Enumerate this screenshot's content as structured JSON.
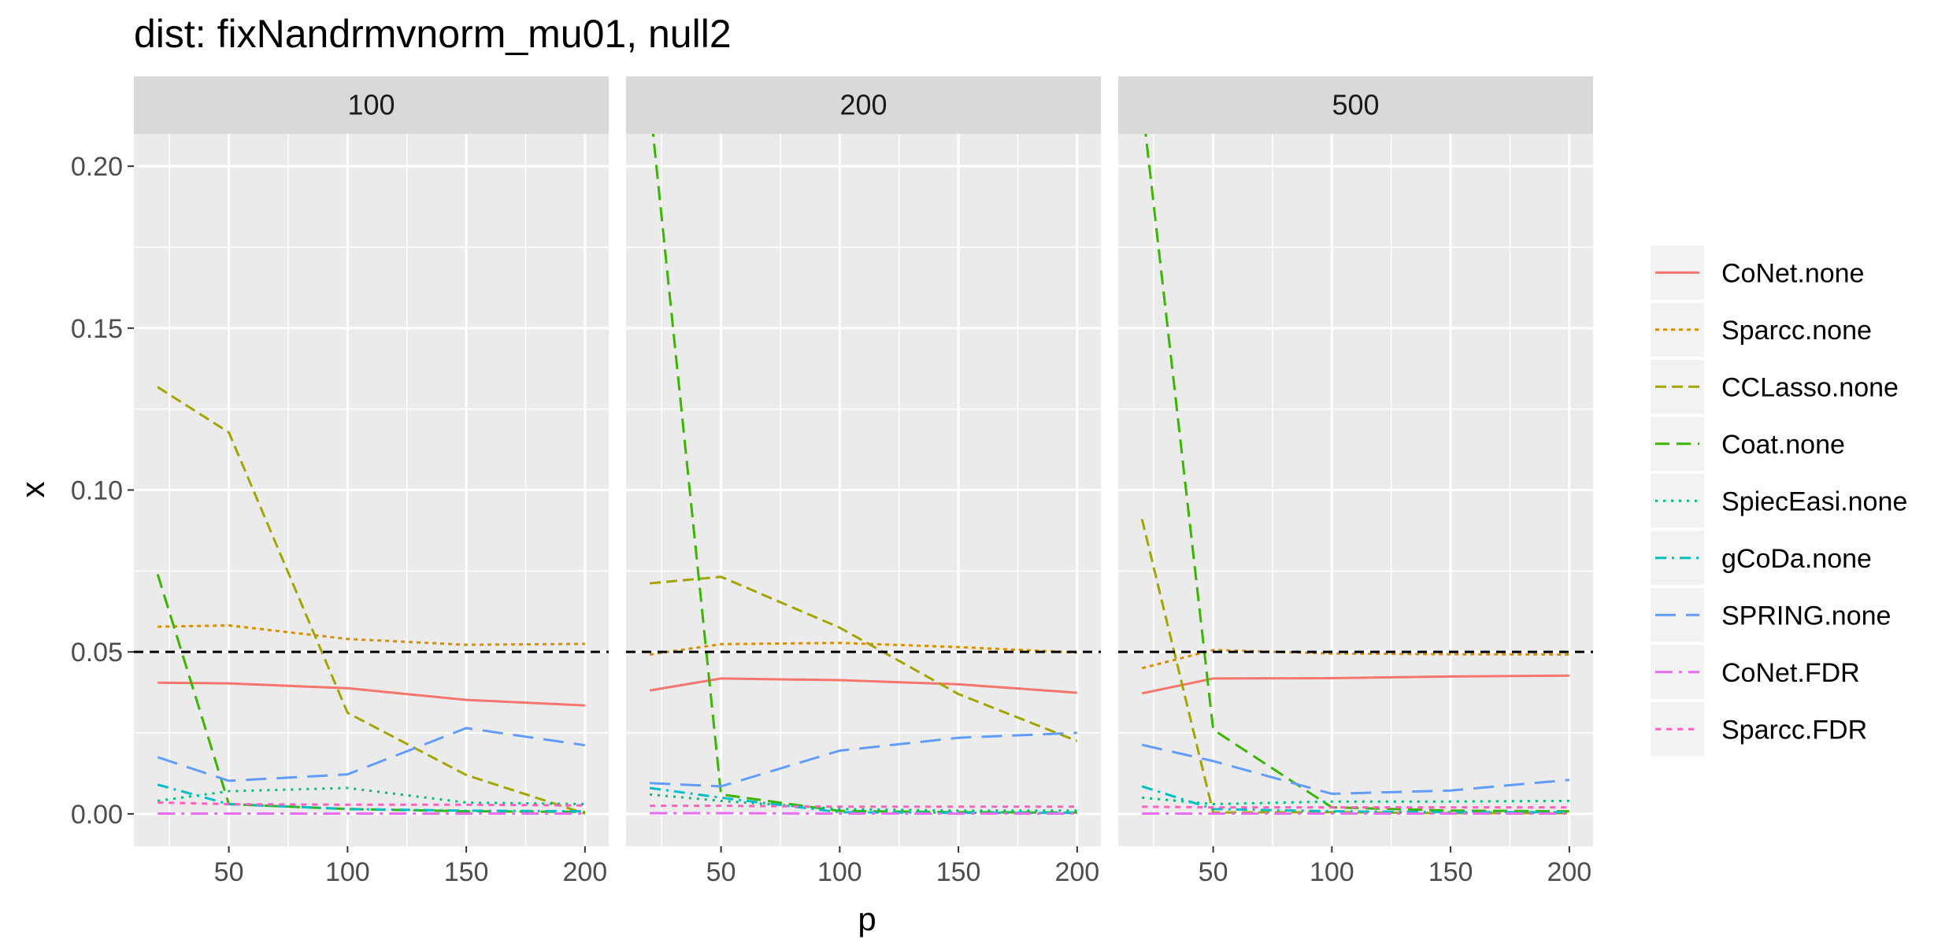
{
  "chart_data": {
    "type": "line",
    "title": "dist: fixNandrmvnorm_mu01, null2",
    "xlabel": "p",
    "ylabel": "x",
    "facet_labels": [
      "100",
      "200",
      "500"
    ],
    "x": [
      20,
      50,
      100,
      150,
      200
    ],
    "xlim": [
      10,
      210
    ],
    "ylim": [
      -0.01,
      0.21
    ],
    "x_ticks": [
      50,
      100,
      150,
      200
    ],
    "x_tick_labels": [
      "50",
      "100",
      "150",
      "200"
    ],
    "y_ticks": [
      0,
      0.05,
      0.1,
      0.15,
      0.2
    ],
    "y_tick_labels": [
      "0.00",
      "0.05",
      "0.10",
      "0.15",
      "0.20"
    ],
    "reference_line": 0.05,
    "grid": true,
    "legend_position": "right",
    "series": [
      {
        "name": "CoNet.none",
        "color": "#F8766D",
        "dash": "",
        "panels": [
          [
            0.0405,
            0.0403,
            0.0388,
            0.0352,
            0.0335
          ],
          [
            0.0381,
            0.0418,
            0.0413,
            0.04,
            0.0374
          ],
          [
            0.0372,
            0.0418,
            0.0419,
            0.0424,
            0.0427
          ]
        ]
      },
      {
        "name": "Sparcc.none",
        "color": "#D89000",
        "dash": "5,5",
        "panels": [
          [
            0.0578,
            0.0582,
            0.054,
            0.0522,
            0.0525
          ],
          [
            0.0492,
            0.0524,
            0.0528,
            0.0515,
            0.0498
          ],
          [
            0.045,
            0.0506,
            0.0495,
            0.0493,
            0.0492
          ]
        ]
      },
      {
        "name": "CCLasso.none",
        "color": "#A3A500",
        "dash": "14,7",
        "panels": [
          [
            0.1318,
            0.1178,
            0.0312,
            0.012,
            0.0001
          ],
          [
            0.0712,
            0.0732,
            0.0575,
            0.037,
            0.0225
          ],
          [
            0.091,
            0.0004,
            0.0005,
            0.0002,
            0.0002
          ]
        ]
      },
      {
        "name": "Coat.none",
        "color": "#39B600",
        "dash": "18,9",
        "panels": [
          [
            0.074,
            0.003,
            0.0015,
            0.0008,
            0.0006
          ],
          [
            0.22,
            0.006,
            0.0009,
            0.0005,
            0.0004
          ],
          [
            0.22,
            0.026,
            0.002,
            0.001,
            0.0008
          ]
        ]
      },
      {
        "name": "SpiecEasi.none",
        "color": "#00BF7D",
        "dash": "3,7",
        "panels": [
          [
            0.004,
            0.007,
            0.008,
            0.0035,
            0.003
          ],
          [
            0.006,
            0.004,
            0.0015,
            0.001,
            0.001
          ],
          [
            0.005,
            0.003,
            0.0038,
            0.0038,
            0.004
          ]
        ]
      },
      {
        "name": "gCoDa.none",
        "color": "#00BFC4",
        "dash": "14,7,3,7",
        "panels": [
          [
            0.009,
            0.003,
            0.0015,
            0.001,
            0.0008
          ],
          [
            0.008,
            0.005,
            0.0005,
            0.0003,
            0.0003
          ],
          [
            0.0085,
            0.0015,
            0.0008,
            0.0005,
            0.0005
          ]
        ]
      },
      {
        "name": "SPRING.none",
        "color": "#619CFF",
        "dash": "26,13",
        "panels": [
          [
            0.0175,
            0.0102,
            0.0122,
            0.0265,
            0.0212
          ],
          [
            0.0095,
            0.0085,
            0.0195,
            0.0235,
            0.025
          ],
          [
            0.0213,
            0.0163,
            0.0062,
            0.0072,
            0.0105
          ]
        ]
      },
      {
        "name": "CoNet.FDR",
        "color": "#E76BF3",
        "dash": "22,8,4,8",
        "panels": [
          [
            0.0001,
            0.0001,
            0.0001,
            0.0001,
            0.0001
          ],
          [
            0.0002,
            0.0002,
            0.0001,
            0.0001,
            0.0001
          ],
          [
            0.0001,
            0.0001,
            0.0001,
            0.0001,
            0.0001
          ]
        ]
      },
      {
        "name": "Sparcc.FDR",
        "color": "#FF62BC",
        "dash": "7,7",
        "panels": [
          [
            0.0035,
            0.003,
            0.0028,
            0.0028,
            0.0026
          ],
          [
            0.0025,
            0.0025,
            0.0022,
            0.0022,
            0.0022
          ],
          [
            0.0022,
            0.002,
            0.002,
            0.002,
            0.002
          ]
        ]
      }
    ]
  }
}
